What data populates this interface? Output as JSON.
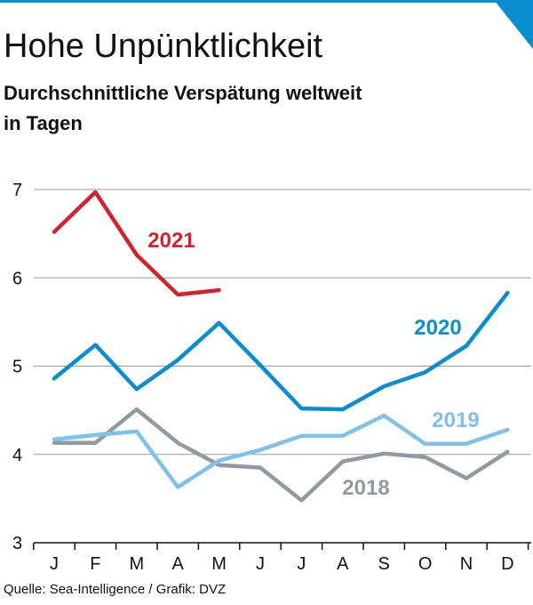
{
  "chart_data": {
    "type": "line",
    "title": "Hohe Unpünktlichkeit",
    "subtitle": [
      "Durchschnittliche Verspätung weltweit",
      "in Tagen"
    ],
    "source": "Quelle: Sea-Intelligence / Grafik: DVZ",
    "categories": [
      "J",
      "F",
      "M",
      "A",
      "M",
      "J",
      "J",
      "A",
      "S",
      "O",
      "N",
      "D"
    ],
    "ylim": [
      3,
      7
    ],
    "yticks": [
      3,
      4,
      5,
      6,
      7
    ],
    "grid": true,
    "series": [
      {
        "name": "2021",
        "color": "#d0232f",
        "values": [
          6.52,
          6.97,
          6.26,
          5.81,
          5.86,
          null,
          null,
          null,
          null,
          null,
          null,
          null
        ]
      },
      {
        "name": "2020",
        "color": "#0a8ecf",
        "values": [
          4.86,
          5.24,
          4.74,
          5.07,
          5.49,
          5.01,
          4.52,
          4.51,
          4.77,
          4.93,
          5.23,
          5.83
        ]
      },
      {
        "name": "2019",
        "color": "#7ec2ec",
        "values": [
          4.17,
          4.22,
          4.26,
          3.63,
          3.93,
          4.05,
          4.21,
          4.21,
          4.44,
          4.12,
          4.12,
          4.28
        ]
      },
      {
        "name": "2018",
        "color": "#8e9ba3",
        "values": [
          4.13,
          4.13,
          4.51,
          4.13,
          3.88,
          3.85,
          3.48,
          3.92,
          4.01,
          3.97,
          3.73,
          4.03
        ]
      }
    ]
  }
}
